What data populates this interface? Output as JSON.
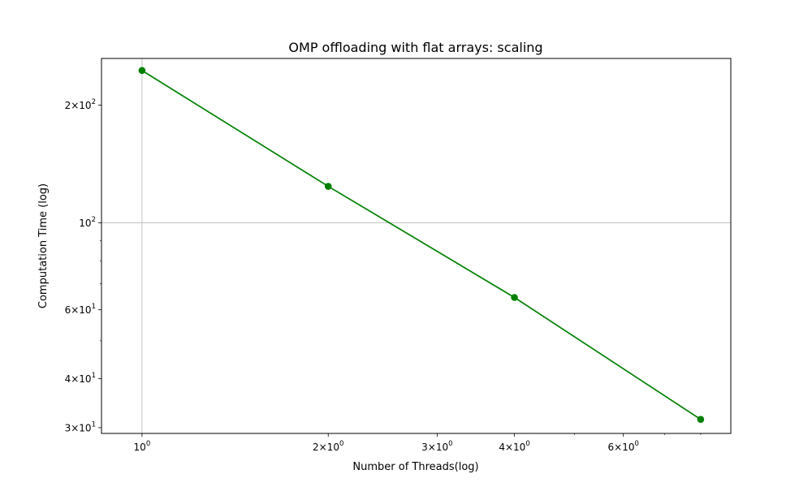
{
  "chart_data": {
    "type": "line",
    "title": "OMP offloading with flat arrays: scaling",
    "xlabel": "Number of Threads(log)",
    "ylabel": "Computation Time (log)",
    "xscale": "log",
    "yscale": "log",
    "xlim": [
      0.86,
      8.95
    ],
    "ylim": [
      29.0,
      263.0
    ],
    "grid": "major",
    "x_ticks": [
      {
        "value": 1,
        "mantissa": "",
        "exp": "0"
      },
      {
        "value": 2,
        "mantissa": "2×",
        "exp": "0"
      },
      {
        "value": 3,
        "mantissa": "3×",
        "exp": "0"
      },
      {
        "value": 4,
        "mantissa": "4×",
        "exp": "0"
      },
      {
        "value": 6,
        "mantissa": "6×",
        "exp": "0"
      }
    ],
    "y_ticks": [
      {
        "value": 200,
        "mantissa": "2×",
        "exp": "2"
      },
      {
        "value": 100,
        "mantissa": "",
        "exp": "2"
      },
      {
        "value": 60,
        "mantissa": "6×",
        "exp": "1"
      },
      {
        "value": 40,
        "mantissa": "4×",
        "exp": "1"
      },
      {
        "value": 30,
        "mantissa": "3×",
        "exp": "1"
      }
    ],
    "x_major_gridlines": [
      1
    ],
    "y_major_gridlines": [
      100
    ],
    "x_minor_ticks": [
      5,
      7,
      8
    ],
    "y_minor_ticks": [
      50,
      70,
      80,
      90
    ],
    "series": [
      {
        "color": "#008000",
        "x": [
          1,
          2,
          4,
          8
        ],
        "y": [
          245,
          124,
          64.5,
          31.5
        ]
      }
    ]
  }
}
